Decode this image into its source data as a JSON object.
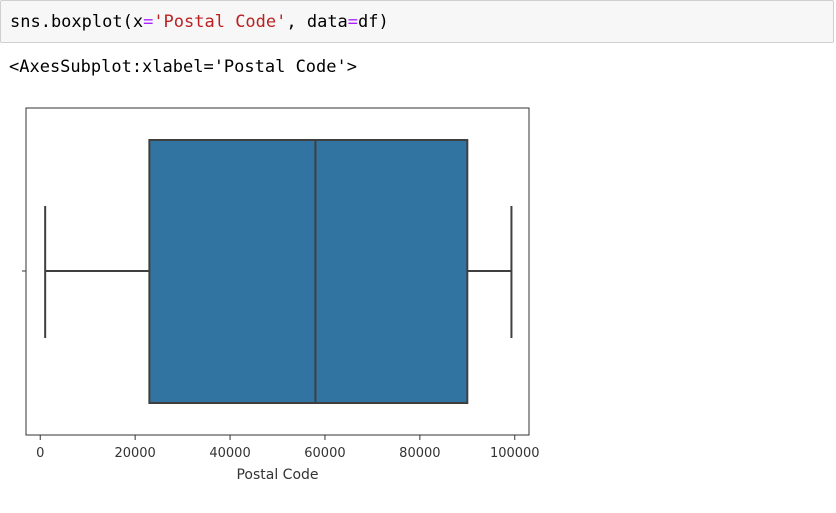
{
  "cell": {
    "fn": "sns.boxplot(x",
    "eq1": "=",
    "arg_str": "'Postal Code'",
    "sep": ", data",
    "eq2": "=",
    "tail": "df)"
  },
  "output": {
    "repr": "<AxesSubplot:xlabel='Postal Code'>"
  },
  "chart_data": {
    "type": "box",
    "orientation": "horizontal",
    "xlabel": "Postal Code",
    "ylabel": "",
    "title": "",
    "xlim": [
      -3000,
      103000
    ],
    "xticks": [
      0,
      20000,
      40000,
      60000,
      80000,
      100000
    ],
    "xtick_labels": [
      "0",
      "20000",
      "40000",
      "60000",
      "80000",
      "100000"
    ],
    "box": {
      "whisker_low": 1040,
      "q1": 23000,
      "median": 58000,
      "q3": 90000,
      "whisker_high": 99300
    },
    "box_color": "#3274a1",
    "line_color": "#3f3f3f",
    "grid": false
  }
}
